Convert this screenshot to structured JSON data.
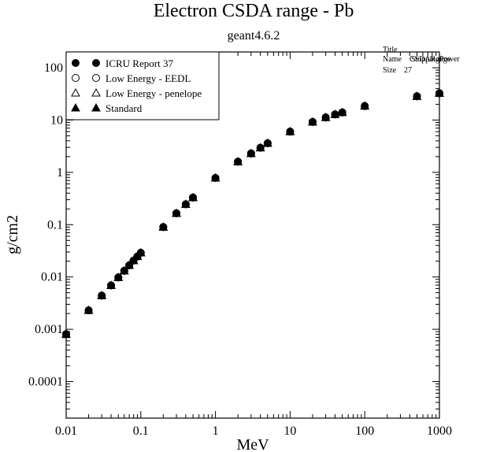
{
  "chart_data": {
    "type": "scatter",
    "title": "Electron CSDA range - Pb",
    "subtitle": "geant4.6.2",
    "xlabel": "MeV",
    "ylabel": "g/cm2",
    "x_scale": "log",
    "y_scale": "log",
    "xlim": [
      0.01,
      1000
    ],
    "ylim": [
      2e-05,
      200
    ],
    "x_ticks": [
      {
        "value": 0.01,
        "label": "0.01"
      },
      {
        "value": 0.1,
        "label": "0.1"
      },
      {
        "value": 1,
        "label": "1"
      },
      {
        "value": 10,
        "label": "10"
      },
      {
        "value": 100,
        "label": "100"
      },
      {
        "value": 1000,
        "label": "1000"
      }
    ],
    "y_ticks": [
      {
        "value": 0.0001,
        "label": "0.0001"
      },
      {
        "value": 0.001,
        "label": "0.001"
      },
      {
        "value": 0.01,
        "label": "0.01"
      },
      {
        "value": 0.1,
        "label": "0.1"
      },
      {
        "value": 1,
        "label": "1"
      },
      {
        "value": 10,
        "label": "10"
      },
      {
        "value": 100,
        "label": "100"
      }
    ],
    "grid": false,
    "legend_position": "top-left",
    "x": [
      0.01,
      0.02,
      0.03,
      0.04,
      0.05,
      0.06,
      0.07,
      0.08,
      0.09,
      0.1,
      0.2,
      0.3,
      0.4,
      0.5,
      1,
      2,
      3,
      4,
      5,
      10,
      20,
      30,
      40,
      50,
      100,
      500,
      1000
    ],
    "series": [
      {
        "name": "ICRU Report 37",
        "marker": "filled-circle",
        "values": [
          0.00081,
          0.0023,
          0.0044,
          0.0069,
          0.0098,
          0.0131,
          0.0167,
          0.0206,
          0.0247,
          0.029,
          0.09,
          0.165,
          0.245,
          0.33,
          0.78,
          1.6,
          2.3,
          2.95,
          3.6,
          6.0,
          9.2,
          11.2,
          12.8,
          14.0,
          18.5,
          28.5,
          32.5
        ]
      },
      {
        "name": "Low Energy - EEDL",
        "marker": "open-circle",
        "values": [
          0.0008,
          0.0023,
          0.0044,
          0.0069,
          0.0098,
          0.0131,
          0.0167,
          0.0206,
          0.0247,
          0.029,
          0.09,
          0.165,
          0.245,
          0.33,
          0.78,
          1.6,
          2.3,
          2.95,
          3.6,
          6.0,
          9.2,
          11.2,
          12.8,
          14.0,
          18.5,
          28.5,
          32.5
        ]
      },
      {
        "name": "Low Energy - penelope",
        "marker": "open-triangle",
        "values": [
          0.0008,
          0.0023,
          0.0044,
          0.0069,
          0.0098,
          0.0131,
          0.0167,
          0.0206,
          0.0247,
          0.029,
          0.09,
          0.165,
          0.245,
          0.33,
          0.78,
          1.6,
          2.3,
          2.95,
          3.6,
          6.0,
          9.2,
          11.2,
          12.8,
          14.0,
          18.5,
          28.5,
          32.5
        ]
      },
      {
        "name": "Standard",
        "marker": "filled-triangle",
        "values": [
          0.0008,
          0.0023,
          0.0044,
          0.0069,
          0.0098,
          0.0131,
          0.0167,
          0.0206,
          0.0247,
          0.029,
          0.09,
          0.165,
          0.245,
          0.33,
          0.78,
          1.6,
          2.3,
          2.95,
          3.6,
          6.0,
          9.2,
          11.2,
          12.8,
          14.0,
          18.5,
          28.5,
          32.5
        ]
      }
    ],
    "annotation": {
      "title_label": "Title",
      "name_label": "Name",
      "name_value": "CSDARange",
      "name_value_2": "StoppingPower",
      "size_label": "Size",
      "size_value": "27"
    },
    "colors": {
      "marker": "#000000",
      "axis": "#000000",
      "background": "#ffffff"
    }
  }
}
